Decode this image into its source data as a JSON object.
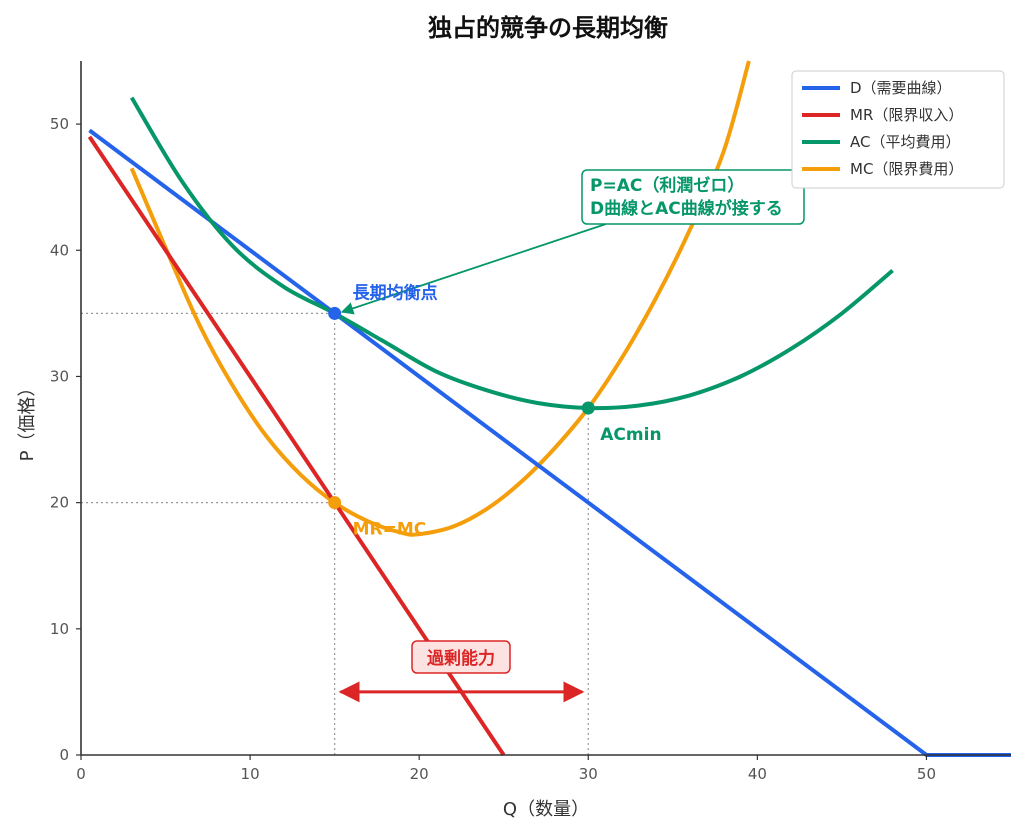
{
  "chart_data": {
    "type": "line",
    "title": "独占的競争の長期均衡",
    "xlabel": "Q（数量）",
    "ylabel": "P（価格）",
    "xlim": [
      0,
      55
    ],
    "ylim": [
      0,
      55
    ],
    "xticks": [
      0,
      10,
      20,
      30,
      40,
      50
    ],
    "yticks": [
      0,
      10,
      20,
      30,
      40,
      50
    ],
    "grid": false,
    "legend_position": "top-right",
    "colors": {
      "demand": "#2563eb",
      "mr": "#dc2626",
      "ac": "#059669",
      "mc": "#f59e0b",
      "axis": "#333333",
      "guide": "#999999"
    },
    "series": [
      {
        "name": "D（需要曲線）",
        "key": "demand",
        "x": [
          0.5,
          50,
          55
        ],
        "y": [
          49.5,
          0,
          0
        ]
      },
      {
        "name": "MR（限界収入）",
        "key": "mr",
        "x": [
          0.5,
          25
        ],
        "y": [
          49,
          0
        ]
      },
      {
        "name": "AC（平均費用）",
        "key": "ac",
        "x": [
          3,
          6,
          9,
          12,
          15,
          18,
          21,
          24,
          27,
          30,
          33,
          36,
          39,
          42,
          45,
          48
        ],
        "y": [
          52.1,
          45.4,
          40.3,
          37.1,
          35,
          32.7,
          30.4,
          28.9,
          27.9,
          27.5,
          27.7,
          28.5,
          30,
          32.2,
          35,
          38.4
        ]
      },
      {
        "name": "MC（限界費用）",
        "key": "mc",
        "x": [
          3,
          5,
          7,
          9,
          11,
          13,
          15,
          17,
          19,
          20,
          22,
          24,
          26,
          28,
          30,
          32,
          34,
          36,
          38,
          39.5
        ],
        "y": [
          46.5,
          40.2,
          34.1,
          29.2,
          25.2,
          22.2,
          20,
          18.5,
          17.6,
          17.5,
          18.1,
          19.5,
          21.6,
          24.3,
          27.5,
          31.5,
          36.2,
          41.6,
          47.8,
          55
        ]
      }
    ],
    "points": [
      {
        "key": "long_run_eq",
        "x": 15,
        "y": 35,
        "color": "#2563eb",
        "label": "長期均衡点"
      },
      {
        "key": "ac_min",
        "x": 30,
        "y": 27.5,
        "color": "#059669",
        "label": "ACmin"
      },
      {
        "key": "mr_mc",
        "x": 15,
        "y": 20,
        "color": "#f59e0b",
        "label": "MR=MC"
      }
    ],
    "annotations": {
      "tangent_line1": "P=AC（利潤ゼロ）",
      "tangent_line2": "D曲線とAC曲線が接する",
      "excess_capacity": "過剰能力",
      "excess_range": [
        15,
        30
      ],
      "excess_y": 5
    }
  }
}
